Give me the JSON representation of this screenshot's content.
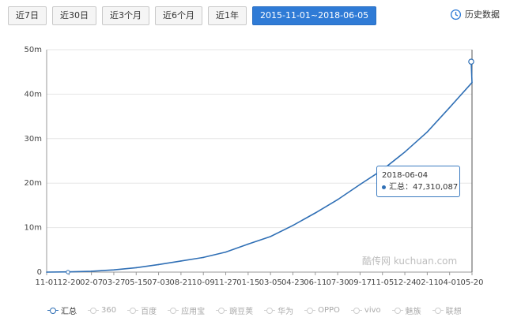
{
  "toolbar": {
    "buttons": [
      "近7日",
      "近30日",
      "近3个月",
      "近6个月",
      "近1年",
      "2015-11-01~2018-06-05"
    ],
    "active_index": 5,
    "history_label": "历史数据"
  },
  "tooltip": {
    "date": "2018-06-04",
    "label": "汇总：47,310,087"
  },
  "watermark": "酷传网 kuchuan.com",
  "legend": [
    "汇总",
    "360",
    "百度",
    "应用宝",
    "豌豆荚",
    "华为",
    "OPPO",
    "vivo",
    "魅族",
    "联想"
  ],
  "colors": {
    "accent": "#2f7bd6",
    "series": "#2f6fb5"
  },
  "chart_data": {
    "type": "line",
    "title": "",
    "xlabel": "",
    "ylabel": "",
    "ylim": [
      0,
      50000000
    ],
    "y_ticks": [
      "0",
      "10m",
      "20m",
      "30m",
      "40m",
      "50m"
    ],
    "x_ticks": [
      "11-01",
      "12-20",
      "02-07",
      "03-27",
      "05-15",
      "07-03",
      "08-21",
      "10-09",
      "11-27",
      "01-15",
      "03-05",
      "04-23",
      "06-11",
      "07-30",
      "09-17",
      "11-05",
      "12-24",
      "02-11",
      "04-01",
      "05-20"
    ],
    "legend_position": "bottom",
    "grid": true,
    "series": [
      {
        "name": "汇总",
        "x": [
          "2015-11-01",
          "2015-12-20",
          "2016-02-07",
          "2016-03-27",
          "2016-05-15",
          "2016-07-03",
          "2016-08-21",
          "2016-10-09",
          "2016-11-27",
          "2017-01-15",
          "2017-03-05",
          "2017-04-23",
          "2017-06-11",
          "2017-07-30",
          "2017-09-17",
          "2017-11-05",
          "2017-12-24",
          "2018-02-11",
          "2018-04-01",
          "2018-05-20",
          "2018-06-04"
        ],
        "values": [
          0,
          50000,
          200000,
          500000,
          1000000,
          1700000,
          2500000,
          3300000,
          4500000,
          6300000,
          8000000,
          10500000,
          13300000,
          16300000,
          19700000,
          23000000,
          27000000,
          31500000,
          37000000,
          42600000,
          47310087
        ]
      }
    ]
  }
}
